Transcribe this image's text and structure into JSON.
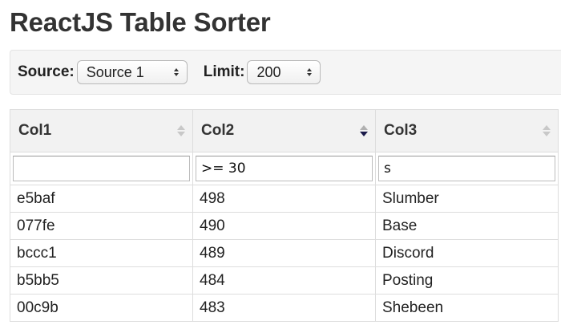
{
  "page": {
    "title": "ReactJS Table Sorter"
  },
  "controls": {
    "source_label": "Source:",
    "source_value": "Source 1",
    "limit_label": "Limit:",
    "limit_value": "200"
  },
  "table": {
    "columns": [
      {
        "label": "Col1",
        "sort": "none"
      },
      {
        "label": "Col2",
        "sort": "descending"
      },
      {
        "label": "Col3",
        "sort": "none"
      }
    ],
    "filters": [
      "",
      ">= 30",
      "s"
    ],
    "rows": [
      [
        "e5baf",
        "498",
        "Slumber"
      ],
      [
        "077fe",
        "490",
        "Base"
      ],
      [
        "bccc1",
        "489",
        "Discord"
      ],
      [
        "b5bb5",
        "484",
        "Posting"
      ],
      [
        "00c9b",
        "483",
        "Shebeen"
      ]
    ]
  },
  "icons": {
    "sort_unsorted": "sort-both-icon",
    "sort_descending": "sort-desc-icon",
    "select_arrows": "updown-arrows-icon"
  },
  "colors": {
    "header_bg": "#f2f2f2",
    "controls_bg": "#f5f5f5",
    "active_sort": "#1a1a4a",
    "inactive_sort": "#c8c8c8"
  }
}
